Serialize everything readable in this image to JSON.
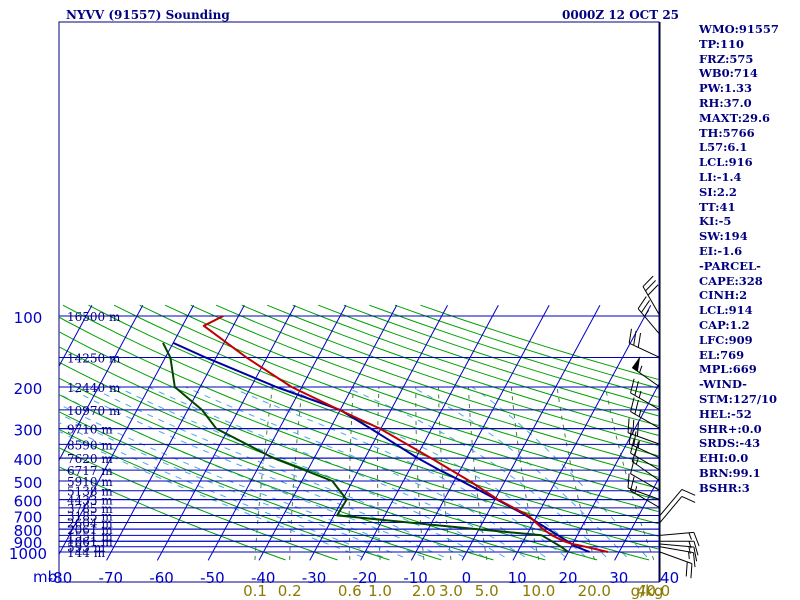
{
  "header": {
    "title": "NYVV (91557) Sounding",
    "datetime": "0000Z 12 OCT 25"
  },
  "indices": [
    "WMO:91557",
    "TP:110",
    "FRZ:575",
    "WB0:714",
    "PW:1.33",
    "RH:37.0",
    "MAXT:29.6",
    "TH:5766",
    "L57:6.1",
    "LCL:916",
    "LI:-1.4",
    "SI:2.2",
    "TT:41",
    "KI:-5",
    "SW:194",
    "EI:-1.6",
    "-PARCEL-",
    "CAPE:328",
    "CINH:2",
    "LCL:914",
    "CAP:1.2",
    "LFC:909",
    "EL:769",
    "MPL:669",
    "-WIND-",
    "STM:127/10",
    "HEL:-52",
    "SHR+:0.0",
    "SRDS:-43",
    "EHI:0.0",
    "BRN:99.1",
    "BSHR:3"
  ],
  "colors": {
    "frame": "#000080",
    "isobar": "#0000c0",
    "isotherm": "#0000c0",
    "dry_adiabat": "#00a000",
    "moist_adiabat": "#4fa6e8",
    "mixing_ratio": "#4a7a4a",
    "temperature": "#c00000",
    "dewpoint": "#004400",
    "parcel": "#0000a0",
    "pressure_labels": "#0000c8",
    "mixing_labels": "#8a7a00",
    "wind_barbs": "#000000"
  },
  "chart_data": {
    "type": "skew-t",
    "p_levels": [
      1000,
      900,
      800,
      700,
      600,
      500,
      400,
      300,
      200,
      100
    ],
    "p_tick_labels": [
      "1000",
      "900",
      "800",
      "700",
      "600",
      "500",
      "400",
      "300",
      "200",
      "100"
    ],
    "p_unit": "mb",
    "t_ticks": [
      -80,
      -70,
      -60,
      -50,
      -40,
      -30,
      -20,
      -10,
      0,
      10,
      20,
      30,
      40
    ],
    "t_tick_labels": [
      "-80",
      "-70",
      "-60",
      "-50",
      "-40",
      "-30",
      "-20",
      "-10",
      "0",
      "10",
      "20",
      "30",
      "40"
    ],
    "t_reference_p": 1005,
    "mixing_ratios": [
      0.1,
      0.2,
      0.6,
      1.0,
      2.0,
      3.0,
      5.0,
      10.0,
      20.0,
      40.0
    ],
    "mixing_labels": [
      "0.1",
      "0.2",
      "0.6",
      "1.0",
      "2.0",
      "3.0",
      "5.0",
      "10.0",
      "20.0",
      "40.0"
    ],
    "mixing_unit": "g/kg",
    "heights": [
      {
        "p": 100,
        "label": "16500 m"
      },
      {
        "p": 150,
        "label": "14250 m"
      },
      {
        "p": 200,
        "label": "12440 m"
      },
      {
        "p": 250,
        "label": "10970 m"
      },
      {
        "p": 300,
        "label": "9710 m"
      },
      {
        "p": 350,
        "label": "8590 m"
      },
      {
        "p": 400,
        "label": "7620 m"
      },
      {
        "p": 450,
        "label": "6717 m"
      },
      {
        "p": 500,
        "label": "5910 m"
      },
      {
        "p": 550,
        "label": "5138 m"
      },
      {
        "p": 600,
        "label": "4433 m"
      },
      {
        "p": 650,
        "label": "3785 m"
      },
      {
        "p": 700,
        "label": "3185 m"
      },
      {
        "p": 750,
        "label": "2604 m"
      },
      {
        "p": 800,
        "label": "2061 m"
      },
      {
        "p": 850,
        "label": "1551 m"
      },
      {
        "p": 900,
        "label": "1061 m"
      },
      {
        "p": 950,
        "label": "593 m"
      },
      {
        "p": 1000,
        "label": "144 m"
      }
    ],
    "temperature": [
      {
        "p": 1000,
        "t": 27.8
      },
      {
        "p": 950,
        "t": 22.8
      },
      {
        "p": 925,
        "t": 20.0
      },
      {
        "p": 900,
        "t": 18.0
      },
      {
        "p": 850,
        "t": 15.0
      },
      {
        "p": 800,
        "t": 12.6
      },
      {
        "p": 700,
        "t": 8.2
      },
      {
        "p": 600,
        "t": 0.6
      },
      {
        "p": 500,
        "t": -7.0
      },
      {
        "p": 400,
        "t": -17.0
      },
      {
        "p": 300,
        "t": -30.2
      },
      {
        "p": 250,
        "t": -40.2
      },
      {
        "p": 200,
        "t": -52.0
      },
      {
        "p": 150,
        "t": -64.0
      },
      {
        "p": 110,
        "t": -75.8
      },
      {
        "p": 100,
        "t": -73.0
      }
    ],
    "dewpoint": [
      {
        "p": 1000,
        "t": 20.0
      },
      {
        "p": 950,
        "t": 18.0
      },
      {
        "p": 850,
        "t": 13.0
      },
      {
        "p": 800,
        "t": -0.5
      },
      {
        "p": 700,
        "t": -29.4
      },
      {
        "p": 600,
        "t": -29.2
      },
      {
        "p": 500,
        "t": -34.0
      },
      {
        "p": 400,
        "t": -48.0
      },
      {
        "p": 300,
        "t": -62.4
      },
      {
        "p": 250,
        "t": -67.2
      },
      {
        "p": 200,
        "t": -75.0
      },
      {
        "p": 150,
        "t": -79.0
      },
      {
        "p": 130,
        "t": -82.0
      }
    ],
    "parcel": [
      {
        "p": 1000,
        "t": 24.2
      },
      {
        "p": 950,
        "t": 21.0
      },
      {
        "p": 916,
        "t": 19.4
      },
      {
        "p": 850,
        "t": 16.2
      },
      {
        "p": 800,
        "t": 13.6
      },
      {
        "p": 700,
        "t": 7.8
      },
      {
        "p": 600,
        "t": 0.4
      },
      {
        "p": 500,
        "t": -8.6
      },
      {
        "p": 450,
        "t": -14.0
      },
      {
        "p": 400,
        "t": -19.6
      },
      {
        "p": 300,
        "t": -32.0
      },
      {
        "p": 250,
        "t": -40.0
      },
      {
        "p": 200,
        "t": -55.0
      },
      {
        "p": 150,
        "t": -72.0
      },
      {
        "p": 130,
        "t": -80.0
      }
    ],
    "wind": [
      {
        "p": 1000,
        "dir": 110,
        "speed": 20
      },
      {
        "p": 950,
        "dir": 100,
        "speed": 15
      },
      {
        "p": 925,
        "dir": 95,
        "speed": 15
      },
      {
        "p": 900,
        "dir": 90,
        "speed": 15
      },
      {
        "p": 850,
        "dir": 85,
        "speed": 15
      },
      {
        "p": 750,
        "dir": 40,
        "speed": 10
      },
      {
        "p": 700,
        "dir": 40,
        "speed": 10
      },
      {
        "p": 650,
        "dir": 300,
        "speed": 15
      },
      {
        "p": 600,
        "dir": 290,
        "speed": 10
      },
      {
        "p": 550,
        "dir": 300,
        "speed": 10
      },
      {
        "p": 500,
        "dir": 305,
        "speed": 15
      },
      {
        "p": 450,
        "dir": 300,
        "speed": 20
      },
      {
        "p": 400,
        "dir": 295,
        "speed": 25
      },
      {
        "p": 350,
        "dir": 290,
        "speed": 30
      },
      {
        "p": 300,
        "dir": 300,
        "speed": 25
      },
      {
        "p": 250,
        "dir": 300,
        "speed": 25
      },
      {
        "p": 200,
        "dir": 305,
        "speed": 55
      },
      {
        "p": 150,
        "dir": 295,
        "speed": 30
      },
      {
        "p": 120,
        "dir": 320,
        "speed": 25
      },
      {
        "p": 100,
        "dir": 330,
        "speed": 30
      }
    ]
  }
}
